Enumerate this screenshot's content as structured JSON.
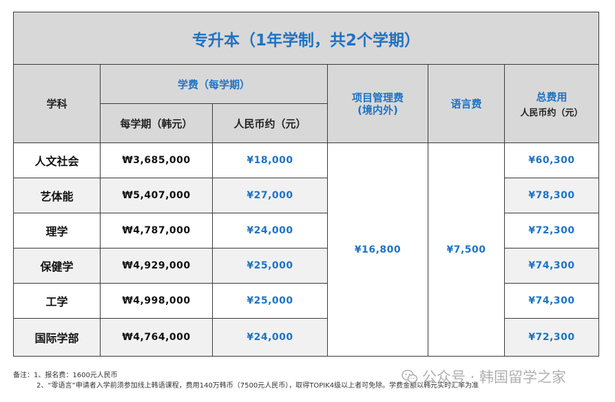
{
  "title": "专升本（1年学制，共2个学期）",
  "headers": {
    "subject": "学科",
    "tuition_group": "学费（每学期）",
    "tuition_krw": "每学期（韩元）",
    "tuition_cny": "人民币约（元）",
    "program_fee": "项目管理费\n(境内外)",
    "language_fee": "语言费",
    "total_line1": "总费用",
    "total_line2": "人民币约（元）"
  },
  "rows": [
    {
      "subject": "人文社会",
      "krw": "₩3,685,000",
      "cny": "¥18,000",
      "total": "¥60,300"
    },
    {
      "subject": "艺体能",
      "krw": "₩5,407,000",
      "cny": "¥27,000",
      "total": "¥78,300"
    },
    {
      "subject": "理学",
      "krw": "₩4,787,000",
      "cny": "¥24,000",
      "total": "¥72,300"
    },
    {
      "subject": "保健学",
      "krw": "₩4,929,000",
      "cny": "¥25,000",
      "total": "¥74,300"
    },
    {
      "subject": "工学",
      "krw": "₩4,998,000",
      "cny": "¥25,000",
      "total": "¥74,300"
    },
    {
      "subject": "国际学部",
      "krw": "₩4,764,000",
      "cny": "¥24,000",
      "total": "¥72,300"
    }
  ],
  "program_fee_value": "¥16,800",
  "language_fee_value": "¥7,500",
  "notes": {
    "line1": "备注：1、报名费：1600元人民币",
    "line2": "2、“零语言”申请者入学前须参加线上韩语课程，费用140万韩币（7500元人民币），取得TOPIK4级以上者可免除。学费金额以韩元实时汇率为准"
  },
  "watermark": "公众号 · 韩国留学之家",
  "colors": {
    "accent": "#1f73c4",
    "header_bg": "#d8d8d8",
    "row_alt": "#f1f1f1",
    "watermark": "#b0b0b0"
  }
}
